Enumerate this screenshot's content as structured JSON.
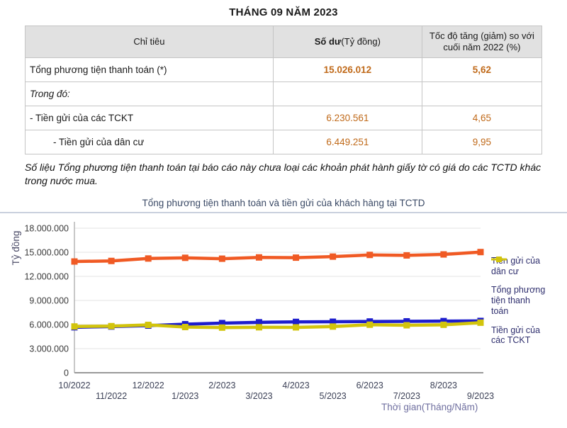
{
  "page_title": "THÁNG 09 NĂM 2023",
  "table": {
    "columns": [
      {
        "label": "Chỉ tiêu"
      },
      {
        "label_bold": "Số dư",
        "label_unit": "(Tỷ đồng)"
      },
      {
        "label": "Tốc độ tăng (giảm) so với cuối năm 2022 (%)"
      }
    ],
    "rows": [
      {
        "label": "Tổng phương tiện thanh toán (*)",
        "balance": "15.026.012",
        "growth": "5,62"
      },
      {
        "label": "Trong đó:",
        "balance": "",
        "growth": ""
      },
      {
        "label": "- Tiền gửi của các TCKT",
        "balance": "6.230.561",
        "growth": "4,65"
      },
      {
        "label": "- Tiền gửi của dân cư",
        "balance": "6.449.251",
        "growth": "9,95"
      }
    ],
    "value_color": "#c06a1a"
  },
  "footnote": "Số liệu Tổng phương tiện thanh toán tại báo cáo này chưa loại các khoản phát hành giấy tờ có giá do các TCTD khác trong nước mua.",
  "chart_data": {
    "type": "line",
    "title": "Tổng phương tiện thanh toán và tiền gửi của khách hàng tại TCTD",
    "xlabel": "Thời gian(Tháng/Năm)",
    "ylabel": "Tỷ đồng",
    "x": [
      "10/2022",
      "11/2022",
      "12/2022",
      "1/2023",
      "2/2023",
      "3/2023",
      "4/2023",
      "5/2023",
      "6/2023",
      "7/2023",
      "8/2023",
      "9/2023"
    ],
    "ylim": [
      0,
      18000000
    ],
    "ytick_step": 3000000,
    "grid": true,
    "legend_position": "right",
    "series": [
      {
        "name": "Tiền gửi của dân cư",
        "color": "#1d1dcd",
        "values": [
          5660000,
          5750000,
          5866000,
          6040000,
          6180000,
          6280000,
          6330000,
          6350000,
          6380000,
          6400000,
          6430000,
          6449251
        ]
      },
      {
        "name": "Tổng phương tiện thanh toán",
        "color": "#f05a24",
        "values": [
          13850000,
          13920000,
          14223000,
          14310000,
          14200000,
          14360000,
          14330000,
          14460000,
          14670000,
          14610000,
          14730000,
          15026012
        ]
      },
      {
        "name": "Tiền gửi của các TCKT",
        "color": "#d2c40c",
        "values": [
          5760000,
          5800000,
          5954000,
          5690000,
          5620000,
          5660000,
          5650000,
          5750000,
          5980000,
          5910000,
          5970000,
          6230561
        ]
      }
    ]
  }
}
